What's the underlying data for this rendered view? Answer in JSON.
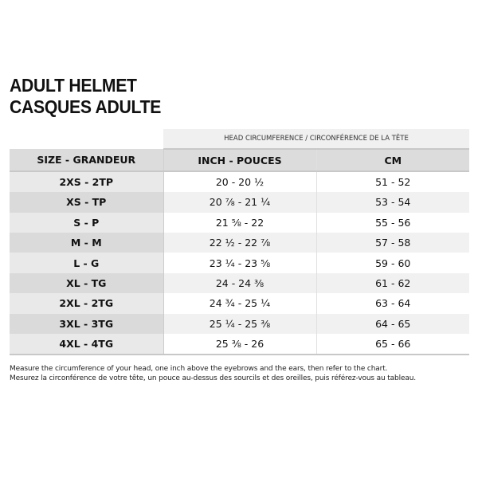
{
  "title": {
    "line1": "ADULT HELMET",
    "line2": "CASQUES ADULTE"
  },
  "table": {
    "group_header": "HEAD CIRCUMFERENCE / CIRCONFÉRENCE DE LA TÊTE",
    "headers": [
      "SIZE - GRANDEUR",
      "INCH - POUCES",
      "CM"
    ],
    "rows": [
      {
        "size": "2XS - 2TP",
        "inch": "20 - 20 ½",
        "cm": "51 - 52"
      },
      {
        "size": "XS - TP",
        "inch": "20 ⅞ - 21 ¼",
        "cm": "53 - 54"
      },
      {
        "size": "S - P",
        "inch": "21 ⅝ - 22",
        "cm": "55 - 56"
      },
      {
        "size": "M - M",
        "inch": "22 ½ - 22 ⅞",
        "cm": "57 - 58"
      },
      {
        "size": "L - G",
        "inch": "23 ¼ - 23 ⅝",
        "cm": "59 - 60"
      },
      {
        "size": "XL - TG",
        "inch": "24 - 24 ⅜",
        "cm": "61 - 62"
      },
      {
        "size": "2XL - 2TG",
        "inch": "24 ¾ - 25 ¼",
        "cm": "63 - 64"
      },
      {
        "size": "3XL - 3TG",
        "inch": "25 ¼ - 25 ⅜",
        "cm": "64 - 65"
      },
      {
        "size": "4XL - 4TG",
        "inch": "25 ⅜ - 26",
        "cm": "65 - 66"
      }
    ]
  },
  "notes": [
    "Measure the circumference of your head, one inch above the eyebrows and the ears, then refer to the chart.",
    "Mesurez la circonférence de votre tête, un pouce au-dessus des sourcils et des oreilles, puis référez-vous au tableau."
  ]
}
